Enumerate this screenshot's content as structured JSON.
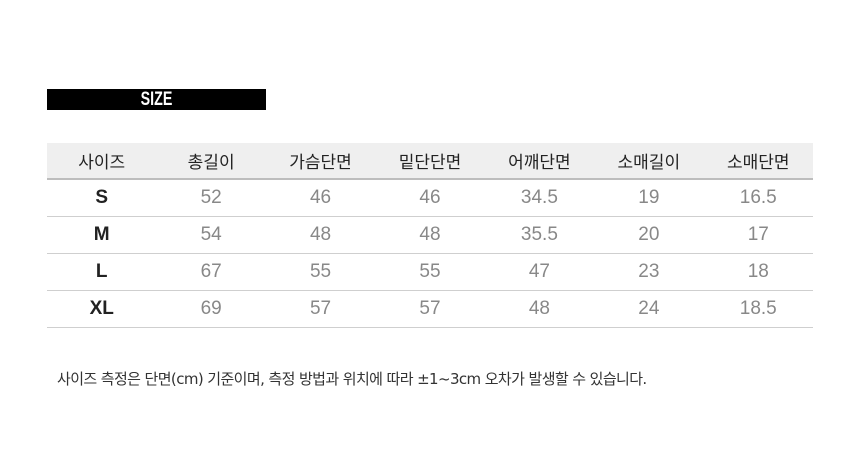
{
  "title": "SIZE",
  "table": {
    "headers": [
      "사이즈",
      "총길이",
      "가슴단면",
      "밑단단면",
      "어깨단면",
      "소매길이",
      "소매단면"
    ],
    "rows": [
      [
        "S",
        "52",
        "46",
        "46",
        "34.5",
        "19",
        "16.5"
      ],
      [
        "M",
        "54",
        "48",
        "48",
        "35.5",
        "20",
        "17"
      ],
      [
        "L",
        "67",
        "55",
        "55",
        "47",
        "23",
        "18"
      ],
      [
        "XL",
        "69",
        "57",
        "57",
        "48",
        "24",
        "18.5"
      ]
    ]
  },
  "note": "사이즈 측정은 단면(cm) 기준이며, 측정 방법과 위치에 따라 ±1~3cm 오차가 발생할 수 있습니다."
}
